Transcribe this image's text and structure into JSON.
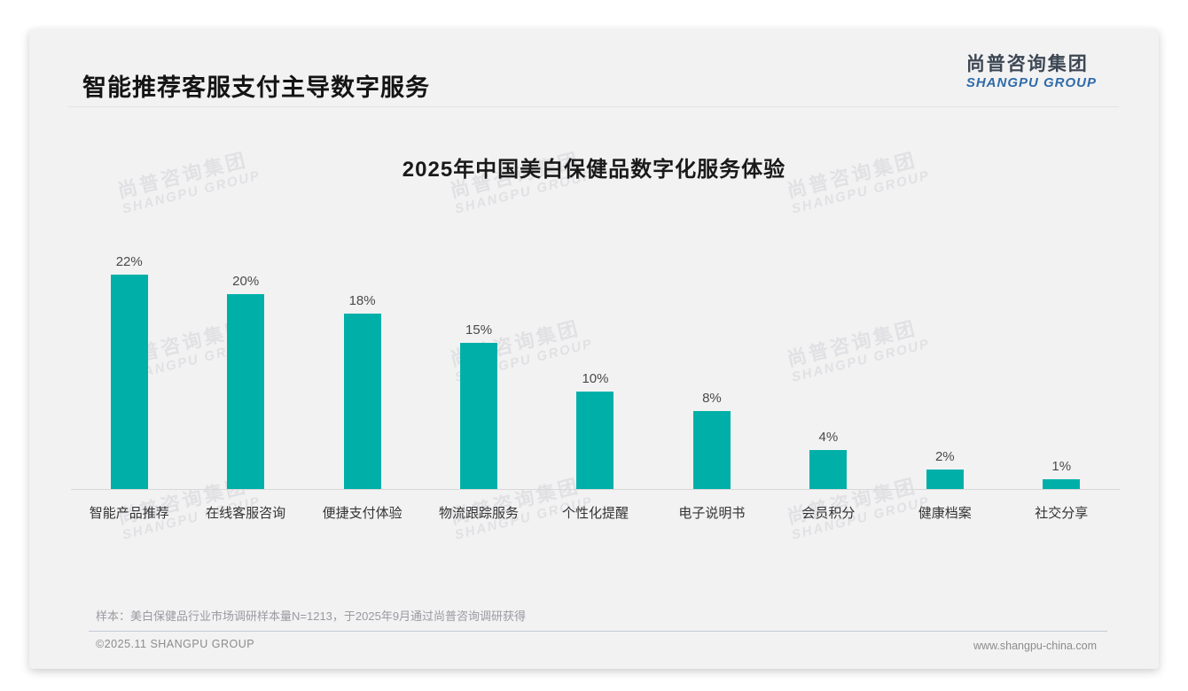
{
  "page": {
    "title": "智能推荐客服支付主导数字服务",
    "logo": {
      "cn": "尚普咨询集团",
      "en": "SHANGPU GROUP"
    },
    "watermark": {
      "cn": "尚普咨询集团",
      "en": "SHANGPU GROUP"
    },
    "note": "样本：美白保健品行业市场调研样本量N=1213，于2025年9月通过尚普咨询调研获得",
    "footer": {
      "copyright": "©2025.11 SHANGPU GROUP",
      "website": "www.shangpu-china.com"
    },
    "colors": {
      "bar": "#00b0a8",
      "card_bg": "#f2f2f3",
      "logo_blue": "#2f6ba8",
      "logo_dark": "#3d4754"
    }
  },
  "chart_data": {
    "type": "bar",
    "title": "2025年中国美白保健品数字化服务体验",
    "categories": [
      "智能产品推荐",
      "在线客服咨询",
      "便捷支付体验",
      "物流跟踪服务",
      "个性化提醒",
      "电子说明书",
      "会员积分",
      "健康档案",
      "社交分享"
    ],
    "values": [
      22,
      20,
      18,
      15,
      10,
      8,
      4,
      2,
      1
    ],
    "unit": "%",
    "data_labels": [
      "22%",
      "20%",
      "18%",
      "15%",
      "10%",
      "8%",
      "4%",
      "2%",
      "1%"
    ],
    "xlabel": "",
    "ylabel": "",
    "ylim": [
      0,
      25
    ],
    "grid": false,
    "legend": "none",
    "bar_color": "#00b0a8"
  }
}
